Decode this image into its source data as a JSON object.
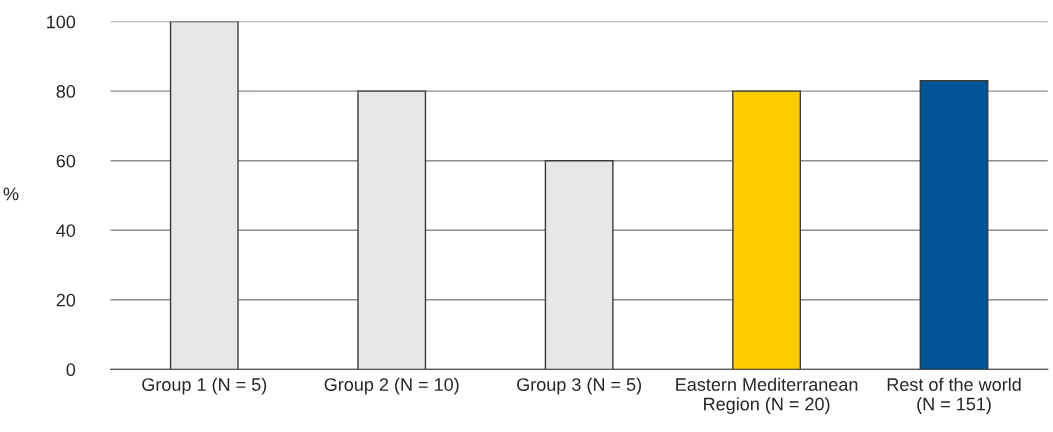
{
  "chart_data": {
    "type": "bar",
    "ylabel": "%",
    "categories": [
      "Group 1 (N = 5)",
      "Group 2 (N = 10)",
      "Group 3 (N = 5)",
      "Eastern Mediterranean\nRegion (N = 20)",
      "Rest of the world\n(N = 151)"
    ],
    "values": [
      100,
      80,
      60,
      80,
      83
    ],
    "colors": [
      "#e6e7e8",
      "#e6e7e8",
      "#e6e7e8",
      "#ffcc00",
      "#005596"
    ],
    "ylim": [
      0,
      100
    ],
    "yticks": [
      0,
      20,
      40,
      60,
      80,
      100
    ],
    "grid": "y"
  }
}
